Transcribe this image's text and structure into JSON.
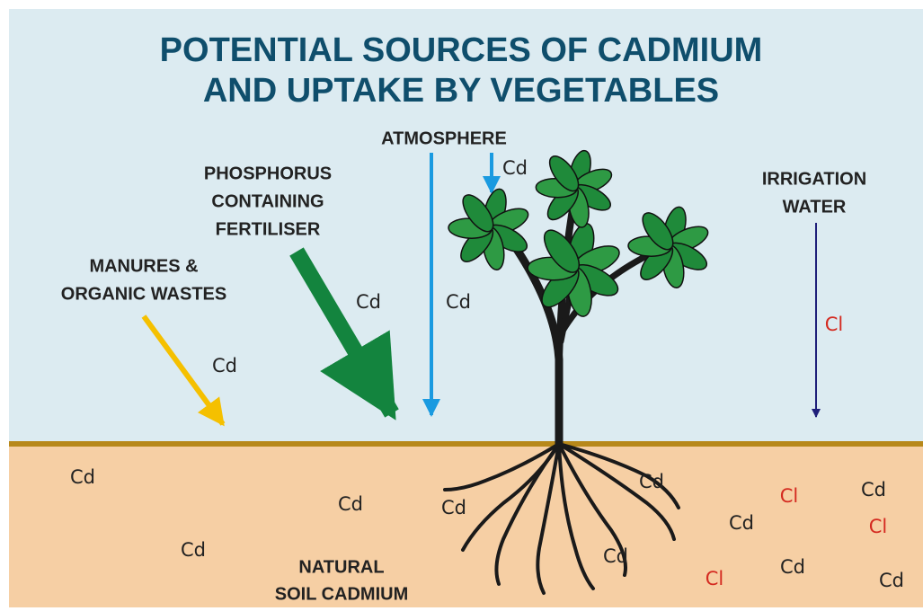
{
  "title": [
    "POTENTIAL SOURCES OF CADMIUM",
    "AND UPTAKE BY VEGETABLES"
  ],
  "sources": {
    "atmosphere": [
      "ATMOSPHERE"
    ],
    "fertiliser": [
      "PHOSPHORUS",
      "CONTAINING",
      "FERTILISER"
    ],
    "manures": [
      "MANURES &",
      "ORGANIC WASTES"
    ],
    "irrigation": [
      "IRRIGATION",
      "WATER"
    ],
    "soil": [
      "NATURAL",
      "SOIL CADMIUM"
    ]
  },
  "air_labels": [
    "Cd",
    "Cd",
    "Cd",
    "Cd",
    "Cl"
  ],
  "soil_labels": [
    "Cd",
    "Cd",
    "Cd",
    "Cd",
    "Cd",
    "Cd",
    "Cl",
    "Cd",
    "Cl",
    "Cd",
    "Cl",
    "Cd",
    "Cd"
  ]
}
